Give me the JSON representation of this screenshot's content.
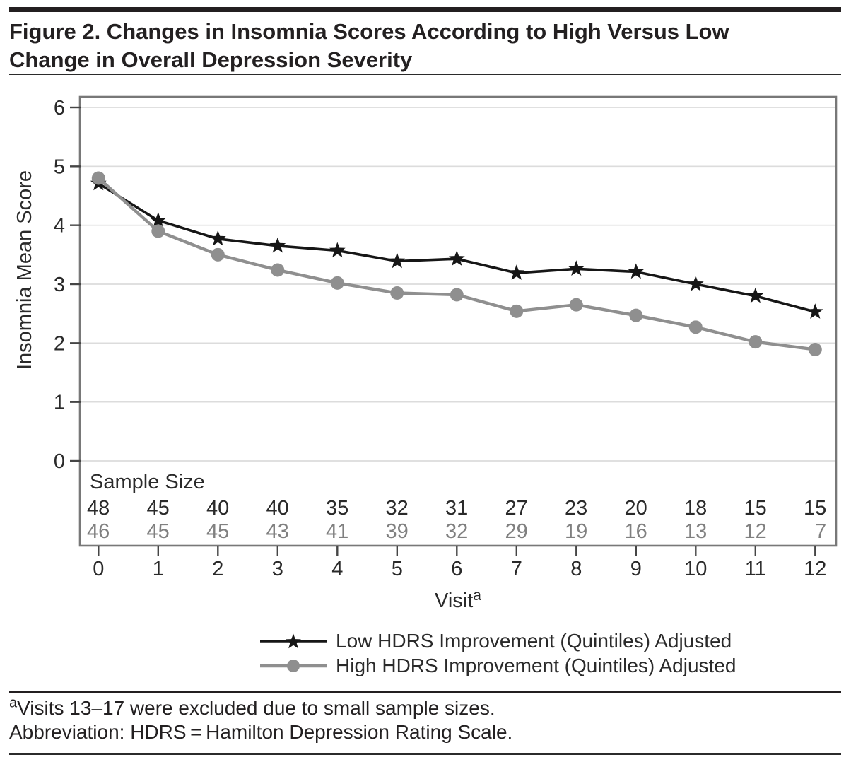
{
  "header": {
    "title_line1": "Figure 2. Changes in Insomnia Scores According to High Versus Low",
    "title_line2": "Change in Overall Depression Severity"
  },
  "chart_data": {
    "type": "line",
    "title": "Figure 2. Changes in Insomnia Scores According to High Versus Low Change in Overall Depression Severity",
    "x": [
      0,
      1,
      2,
      3,
      4,
      5,
      6,
      7,
      8,
      9,
      10,
      11,
      12
    ],
    "xlabel": "Visit",
    "xlabel_superscript": "a",
    "ylabel": "Insomnia Mean Score",
    "ylim": [
      0,
      6
    ],
    "yticks": [
      0,
      1,
      2,
      3,
      4,
      5,
      6
    ],
    "grid": true,
    "legend_position": "bottom",
    "sample_size_label": "Sample Size",
    "series": [
      {
        "name": "Low HDRS Improvement (Quintiles) Adjusted",
        "marker": "star",
        "color": "#161616",
        "values": [
          4.71,
          4.08,
          3.77,
          3.65,
          3.57,
          3.39,
          3.43,
          3.19,
          3.26,
          3.21,
          3.0,
          2.8,
          2.53
        ],
        "sample_sizes": [
          48,
          45,
          40,
          40,
          35,
          32,
          31,
          27,
          23,
          20,
          18,
          15,
          15
        ]
      },
      {
        "name": "High HDRS Improvement (Quintiles) Adjusted",
        "marker": "circle",
        "color": "#8f8f8f",
        "values": [
          4.8,
          3.9,
          3.5,
          3.24,
          3.02,
          2.85,
          2.82,
          2.54,
          2.65,
          2.47,
          2.27,
          2.02,
          1.89
        ],
        "sample_sizes": [
          46,
          45,
          45,
          43,
          41,
          39,
          32,
          29,
          19,
          16,
          13,
          12,
          7
        ]
      }
    ]
  },
  "colors": {
    "grid": "#dcdcdc",
    "frame": "#787878",
    "tick": "#454545",
    "text": "#2a2a2a",
    "muted_text": "#808080"
  },
  "footnotes": {
    "marker": "a",
    "line1": "Visits 13–17 were excluded due to small sample sizes.",
    "line2": "Abbreviation: HDRS = Hamilton Depression Rating Scale."
  }
}
